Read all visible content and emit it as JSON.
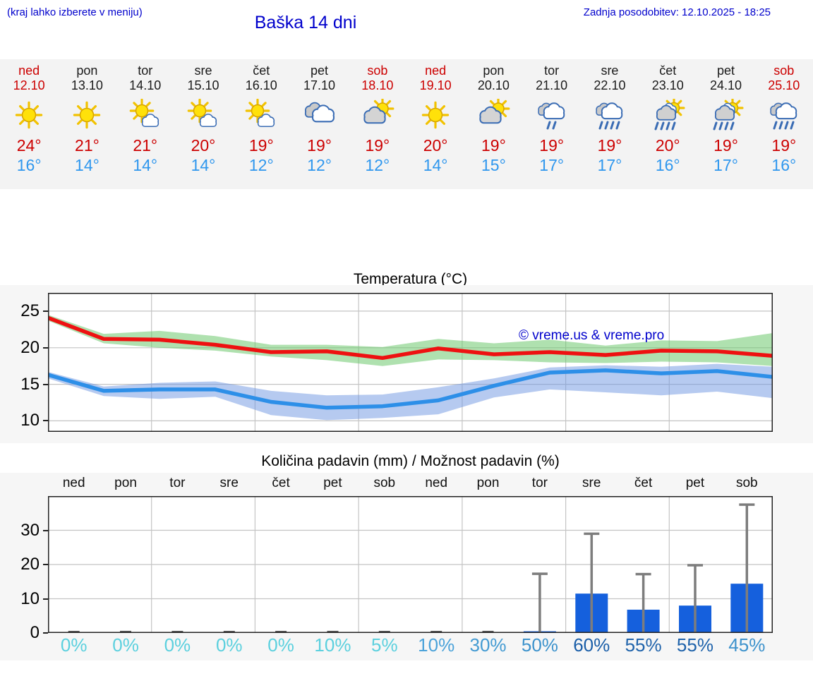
{
  "header": {
    "menu_note": "(kraj lahko izberete v meniju)",
    "title": "Baška 14 dni",
    "last_update": "Zadnja posodobitev: 12.10.2025 - 18:25"
  },
  "colors": {
    "header_blue": "#0000cc",
    "weekend_red": "#cc0000",
    "weekday_dark": "#1a1a1a",
    "tmax_red": "#cc0000",
    "tmin_blue": "#2f97ee",
    "strip_bg": "#f3f3f3",
    "panel_bg": "#f6f6f6",
    "line_red": "#ee1111",
    "line_blue": "#2d8fe8",
    "band_green": "rgba(110,200,110,0.55)",
    "band_blue": "rgba(110,150,225,0.5)",
    "bar_blue": "#1560dd",
    "whisker_gray": "#7d7d7d",
    "zero_cap_gray": "#5a5a5a",
    "grid_gray": "#c4c4c4",
    "icon_cloud_stroke": "#3a6cb4",
    "icon_sun_fill": "#ffe10a",
    "icon_sun_stroke": "#d8a400"
  },
  "forecast": {
    "days": [
      {
        "day": "ned",
        "date": "12.10",
        "weekend": true,
        "icon": "sunny",
        "tmax": "24°",
        "tmin": "16°"
      },
      {
        "day": "pon",
        "date": "13.10",
        "weekend": false,
        "icon": "sunny",
        "tmax": "21°",
        "tmin": "14°"
      },
      {
        "day": "tor",
        "date": "14.10",
        "weekend": false,
        "icon": "mostly-sunny",
        "tmax": "21°",
        "tmin": "14°"
      },
      {
        "day": "sre",
        "date": "15.10",
        "weekend": false,
        "icon": "mostly-sunny",
        "tmax": "20°",
        "tmin": "14°"
      },
      {
        "day": "čet",
        "date": "16.10",
        "weekend": false,
        "icon": "mostly-sunny",
        "tmax": "19°",
        "tmin": "12°"
      },
      {
        "day": "pet",
        "date": "17.10",
        "weekend": false,
        "icon": "cloudy",
        "tmax": "19°",
        "tmin": "12°"
      },
      {
        "day": "sob",
        "date": "18.10",
        "weekend": true,
        "icon": "partly-cloudy",
        "tmax": "19°",
        "tmin": "12°"
      },
      {
        "day": "ned",
        "date": "19.10",
        "weekend": true,
        "icon": "sunny",
        "tmax": "20°",
        "tmin": "14°"
      },
      {
        "day": "pon",
        "date": "20.10",
        "weekend": false,
        "icon": "partly-cloudy",
        "tmax": "19°",
        "tmin": "15°"
      },
      {
        "day": "tor",
        "date": "21.10",
        "weekend": false,
        "icon": "rain-light",
        "tmax": "19°",
        "tmin": "17°"
      },
      {
        "day": "sre",
        "date": "22.10",
        "weekend": false,
        "icon": "rain",
        "tmax": "19°",
        "tmin": "17°"
      },
      {
        "day": "čet",
        "date": "23.10",
        "weekend": false,
        "icon": "sun-rain",
        "tmax": "20°",
        "tmin": "16°"
      },
      {
        "day": "pet",
        "date": "24.10",
        "weekend": false,
        "icon": "sun-rain",
        "tmax": "19°",
        "tmin": "17°"
      },
      {
        "day": "sob",
        "date": "25.10",
        "weekend": true,
        "icon": "rain",
        "tmax": "19°",
        "tmin": "16°"
      }
    ]
  },
  "chart_data": [
    {
      "type": "line",
      "title": "Temperatura (°C)",
      "watermark": "© vreme.us & vreme.pro",
      "categories": [
        "12.10",
        "13.10",
        "14.10",
        "15.10",
        "16.10",
        "17.10",
        "18.10",
        "19.10",
        "20.10",
        "21.10",
        "22.10",
        "23.10",
        "24.10",
        "25.10"
      ],
      "ylabel": "°C",
      "ylim": [
        8.5,
        27.5
      ],
      "yticks": [
        25,
        20,
        15,
        10
      ],
      "grid": true,
      "legend_position": "none",
      "series": [
        {
          "name": "max_temp",
          "values": [
            24.1,
            21.2,
            21.1,
            20.4,
            19.4,
            19.5,
            18.6,
            19.9,
            19.1,
            19.4,
            19.0,
            19.6,
            19.5,
            18.9
          ]
        },
        {
          "name": "max_temp_upper",
          "values": [
            24.5,
            21.9,
            22.3,
            21.6,
            20.4,
            20.4,
            20.1,
            21.2,
            20.6,
            21.1,
            20.3,
            21.0,
            20.9,
            22.0
          ]
        },
        {
          "name": "max_temp_lower",
          "values": [
            23.7,
            20.6,
            20.0,
            19.6,
            18.8,
            18.3,
            17.5,
            18.4,
            18.3,
            18.0,
            17.9,
            18.1,
            18.0,
            17.5
          ]
        },
        {
          "name": "min_temp",
          "values": [
            16.3,
            14.1,
            14.3,
            14.3,
            12.6,
            11.8,
            12.0,
            12.8,
            14.8,
            16.6,
            16.9,
            16.5,
            16.8,
            16.0
          ]
        },
        {
          "name": "min_temp_upper",
          "values": [
            16.7,
            14.7,
            15.2,
            15.4,
            14.1,
            13.5,
            13.6,
            14.6,
            15.8,
            17.3,
            17.6,
            17.4,
            17.8,
            17.4
          ]
        },
        {
          "name": "min_temp_lower",
          "values": [
            15.8,
            13.4,
            13.0,
            13.3,
            10.8,
            10.1,
            10.4,
            10.9,
            13.2,
            14.3,
            13.9,
            13.5,
            14.0,
            13.1
          ]
        }
      ]
    },
    {
      "type": "bar",
      "title": "Količina padavin (mm) / Možnost padavin (%)",
      "categories": [
        "12.10",
        "13.10",
        "14.10",
        "15.10",
        "16.10",
        "17.10",
        "18.10",
        "19.10",
        "20.10",
        "21.10",
        "22.10",
        "23.10",
        "24.10",
        "25.10"
      ],
      "day_labels": [
        "ned",
        "pon",
        "tor",
        "sre",
        "čet",
        "pet",
        "sob",
        "ned",
        "pon",
        "tor",
        "sre",
        "čet",
        "pet",
        "sob"
      ],
      "ylabel": "mm",
      "ylim": [
        0,
        40
      ],
      "yticks": [
        30,
        20,
        10,
        0
      ],
      "grid": true,
      "values": [
        0,
        0,
        0,
        0,
        0,
        0,
        0,
        0,
        0,
        0.5,
        11.5,
        6.8,
        8.0,
        14.4
      ],
      "whisker_max": [
        0,
        0,
        0,
        0,
        0,
        0.3,
        0.3,
        0.4,
        0.4,
        17.3,
        29.0,
        17.2,
        19.8,
        37.5
      ],
      "probabilities": [
        {
          "label": "0%",
          "color": "#5bd0de"
        },
        {
          "label": "0%",
          "color": "#5bd0de"
        },
        {
          "label": "0%",
          "color": "#5bd0de"
        },
        {
          "label": "0%",
          "color": "#5bd0de"
        },
        {
          "label": "0%",
          "color": "#5bd0de"
        },
        {
          "label": "10%",
          "color": "#5bd0de"
        },
        {
          "label": "5%",
          "color": "#5bd0de"
        },
        {
          "label": "10%",
          "color": "#4aa2d9"
        },
        {
          "label": "30%",
          "color": "#429ad2"
        },
        {
          "label": "50%",
          "color": "#3c92cc"
        },
        {
          "label": "60%",
          "color": "#1a5ea8"
        },
        {
          "label": "55%",
          "color": "#1f63ab"
        },
        {
          "label": "55%",
          "color": "#1f63ab"
        },
        {
          "label": "45%",
          "color": "#3d92cc"
        }
      ]
    }
  ]
}
